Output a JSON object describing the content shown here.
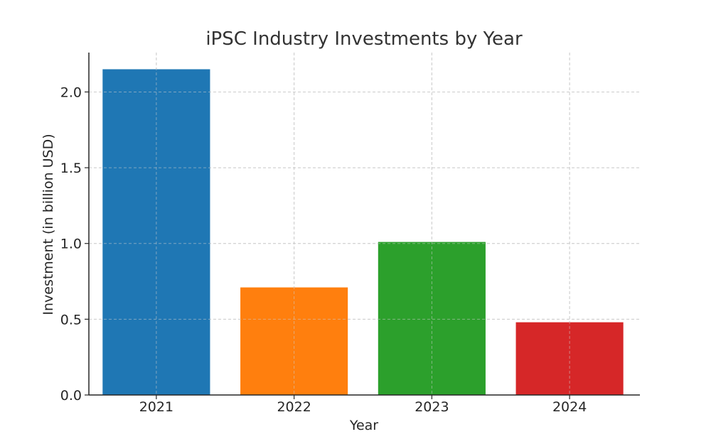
{
  "chart_data": {
    "type": "bar",
    "title": "iPSC Industry Investments by Year",
    "xlabel": "Year",
    "ylabel": "Investment (in billion USD)",
    "categories": [
      "2021",
      "2022",
      "2023",
      "2024"
    ],
    "values": [
      2.15,
      0.71,
      1.01,
      0.48
    ],
    "colors": [
      "#1f77b4",
      "#ff7f0e",
      "#2ca02c",
      "#d62728"
    ],
    "ylim": [
      0,
      2.26
    ],
    "yticks": [
      0.0,
      0.5,
      1.0,
      1.5,
      2.0
    ],
    "ytick_labels": [
      "0.0",
      "0.5",
      "1.0",
      "1.5",
      "2.0"
    ],
    "grid": true,
    "legend": "none"
  }
}
